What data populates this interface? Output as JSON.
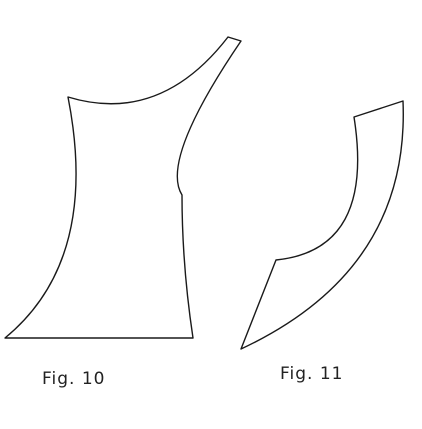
{
  "figures": [
    {
      "caption": "Fig. 10"
    },
    {
      "caption": "Fig. 11"
    }
  ],
  "colors": {
    "background": "#ffffff",
    "ink": "#1a1a1a"
  }
}
